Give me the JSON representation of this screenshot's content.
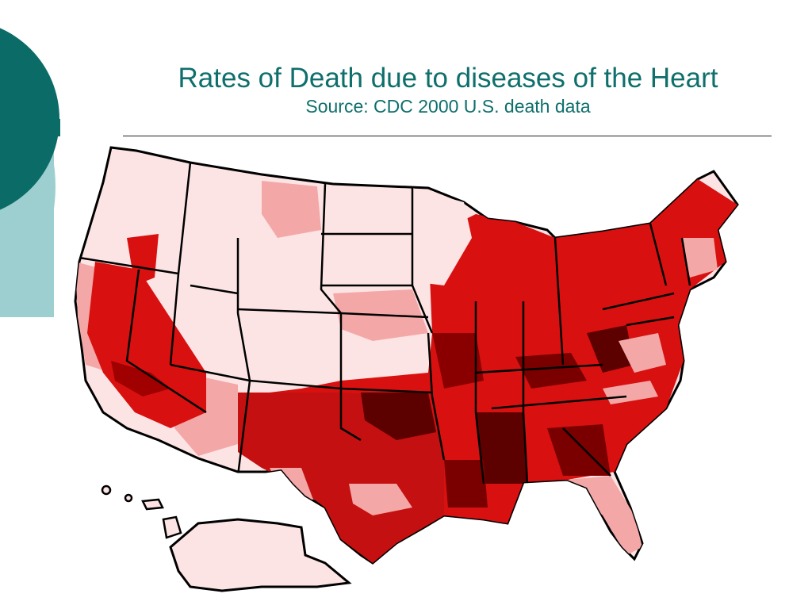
{
  "slide": {
    "title": "Rates of Death due to diseases of the Heart",
    "subtitle": "Source: CDC 2000 U.S. death data"
  },
  "theme": {
    "title_color": "#0e6f6c",
    "accent_dark": "#0b6b66",
    "accent_light": "#9dcfd0"
  },
  "map": {
    "region": "United States (counties)",
    "rate_scale_colors": [
      "#fde4e4",
      "#f4a7a7",
      "#d81010",
      "#b00000",
      "#5c0000"
    ]
  }
}
